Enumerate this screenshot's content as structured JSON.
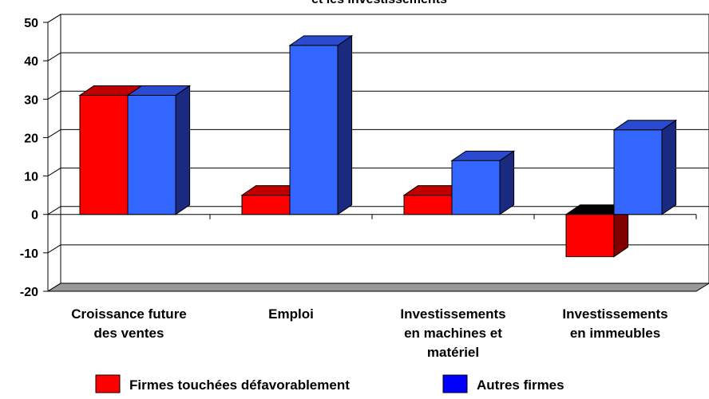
{
  "chart_data": {
    "type": "bar3d",
    "title": "et les investissements",
    "categories": [
      [
        "Croissance future",
        "des ventes"
      ],
      [
        "Emploi"
      ],
      [
        "Investissements",
        "en machines et",
        "matériel"
      ],
      [
        "Investissements",
        "en immeubles"
      ]
    ],
    "series": [
      {
        "name": "Firmes touchées défavorablement",
        "color": "#ff0000",
        "values": [
          31,
          5,
          5,
          -11
        ]
      },
      {
        "name": "Autres firmes",
        "color": "#3366ff",
        "values": [
          31,
          44,
          14,
          22
        ]
      }
    ],
    "ylim": [
      -20,
      50
    ],
    "yticks": [
      -20,
      -10,
      0,
      10,
      20,
      30,
      40,
      50
    ],
    "grid": true
  }
}
